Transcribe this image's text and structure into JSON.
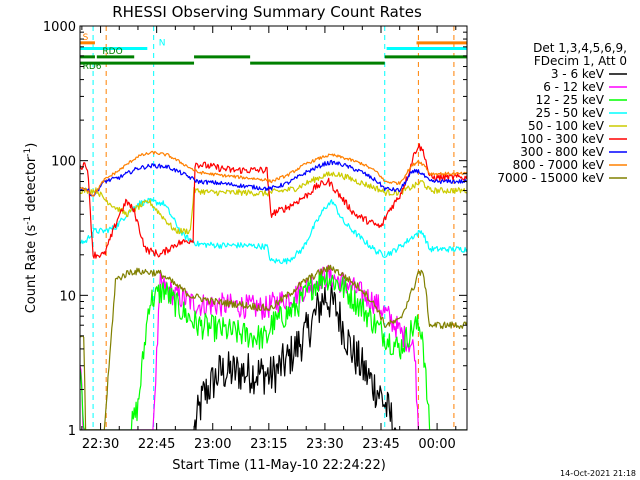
{
  "chart_data": {
    "type": "line",
    "title": "RHESSI Observing Summary Count Rates",
    "xlabel": "Start Time (11-May-10 22:24:22)",
    "ylabel_main": "Count Rate (s",
    "ylabel_sup1": "-1",
    "ylabel_mid": " detector",
    "ylabel_sup2": "-1",
    "ylabel_end": ")",
    "footer": "14-Oct-2021 21:18",
    "y_scale": "log",
    "ylim": [
      1,
      1000
    ],
    "xlim_minutes": [
      -5.5,
      98
    ],
    "x_ticks": [
      {
        "m": 0,
        "label": "22:30"
      },
      {
        "m": 15,
        "label": "22:45"
      },
      {
        "m": 30,
        "label": "23:00"
      },
      {
        "m": 45,
        "label": "23:15"
      },
      {
        "m": 60,
        "label": "23:30"
      },
      {
        "m": 75,
        "label": "23:45"
      },
      {
        "m": 90,
        "label": "00:00"
      }
    ],
    "y_ticks": [
      {
        "v": 1,
        "label": "1"
      },
      {
        "v": 10,
        "label": "10"
      },
      {
        "v": 100,
        "label": "100"
      },
      {
        "v": 1000,
        "label": "1000"
      }
    ],
    "legend": {
      "header1": "Det 1,3,4,5,6,9,",
      "header2": "FDecim 1, Att 0",
      "placement": "right",
      "entries": [
        {
          "label": "3 - 6 keV",
          "color": "#000000"
        },
        {
          "label": "6 - 12 keV",
          "color": "#ff00ff"
        },
        {
          "label": "12 - 25 keV",
          "color": "#00ff00"
        },
        {
          "label": "25 - 50 keV",
          "color": "#00ffff"
        },
        {
          "label": "50 - 100 keV",
          "color": "#cccc00"
        },
        {
          "label": "100 - 300 keV",
          "color": "#ff0000"
        },
        {
          "label": "300 - 800 keV",
          "color": "#0000ff"
        },
        {
          "label": "800 - 7000 keV",
          "color": "#ff8000"
        },
        {
          "label": "7000 - 15000 keV",
          "color": "#808000"
        }
      ]
    },
    "flag_bars": [
      {
        "label": "S",
        "color": "#ff8000",
        "y_value": 750,
        "segments": [
          [
            -5.5,
            -1.5
          ],
          [
            84.5,
            98
          ]
        ]
      },
      {
        "label": "N",
        "color": "#00ffff",
        "y_value": 680,
        "segments": [
          [
            -5.5,
            12.5
          ],
          [
            76.5,
            98
          ]
        ]
      },
      {
        "label": "RDO",
        "color": "#008000",
        "y_value": 590,
        "segments": [
          [
            -5.5,
            -1.5
          ],
          [
            -1,
            9
          ],
          [
            25,
            40
          ],
          [
            76,
            98
          ]
        ]
      },
      {
        "label": "RD6",
        "color": "#008000",
        "y_value": 530,
        "segments": [
          [
            -5.5,
            25
          ],
          [
            40,
            76
          ]
        ]
      }
    ],
    "vlines": [
      {
        "m": -2,
        "color": "#00ffff"
      },
      {
        "m": 1.5,
        "color": "#ff8000"
      },
      {
        "m": 14.2,
        "color": "#00ffff"
      },
      {
        "m": 76,
        "color": "#00ffff"
      },
      {
        "m": 85,
        "color": "#ff8000"
      },
      {
        "m": 94.5,
        "color": "#ff8000"
      }
    ],
    "series": [
      {
        "name": "3 - 6 keV",
        "color": "#000000",
        "noise": 0.35,
        "floor": 1,
        "points": [
          [
            -6,
            1
          ],
          [
            25,
            1
          ],
          [
            27.5,
            1.8
          ],
          [
            32,
            2.7
          ],
          [
            38,
            2.7
          ],
          [
            44.5,
            2.6
          ],
          [
            45.5,
            2.5
          ],
          [
            50,
            3.3
          ],
          [
            55,
            5.2
          ],
          [
            60,
            10
          ],
          [
            63,
            8
          ],
          [
            67,
            4
          ],
          [
            71,
            2.6
          ],
          [
            75,
            1.8
          ],
          [
            79,
            1
          ],
          [
            98,
            1
          ]
        ]
      },
      {
        "name": "6 - 12 keV",
        "color": "#ff00ff",
        "noise": 0.2,
        "floor": 1,
        "points": [
          [
            -6,
            5.5
          ],
          [
            -4.5,
            1
          ],
          [
            14,
            1
          ],
          [
            16,
            12
          ],
          [
            20,
            10
          ],
          [
            26,
            8.5
          ],
          [
            32,
            8.5
          ],
          [
            38,
            8.3
          ],
          [
            44.5,
            8
          ],
          [
            45.5,
            8.5
          ],
          [
            52,
            10
          ],
          [
            58,
            13
          ],
          [
            61,
            14
          ],
          [
            66,
            12
          ],
          [
            73,
            9
          ],
          [
            76,
            7.5
          ],
          [
            81,
            5
          ],
          [
            84,
            4
          ],
          [
            85,
            1
          ],
          [
            86.5,
            1
          ],
          [
            88,
            1
          ],
          [
            98,
            1
          ]
        ]
      },
      {
        "name": "12 - 25 keV",
        "color": "#00ff00",
        "noise": 0.22,
        "floor": 1,
        "points": [
          [
            -6,
            6
          ],
          [
            -4.3,
            1
          ],
          [
            8,
            1
          ],
          [
            10,
            1.5
          ],
          [
            13,
            9
          ],
          [
            17,
            11
          ],
          [
            21,
            8
          ],
          [
            26,
            6
          ],
          [
            33,
            5.5
          ],
          [
            40,
            5
          ],
          [
            44.5,
            4.8
          ],
          [
            45.5,
            6
          ],
          [
            52,
            8
          ],
          [
            57,
            12
          ],
          [
            60,
            14
          ],
          [
            64,
            12
          ],
          [
            70,
            8
          ],
          [
            76,
            5
          ],
          [
            80,
            4
          ],
          [
            84,
            6
          ],
          [
            86,
            5.5
          ],
          [
            88,
            1
          ],
          [
            98,
            1
          ]
        ]
      },
      {
        "name": "25 - 50 keV",
        "color": "#00ffff",
        "noise": 0.05,
        "floor": 1,
        "points": [
          [
            -6,
            25
          ],
          [
            -4,
            25
          ],
          [
            -2,
            30
          ],
          [
            1,
            30
          ],
          [
            4,
            32
          ],
          [
            7,
            40
          ],
          [
            10,
            48
          ],
          [
            13,
            50
          ],
          [
            17,
            48
          ],
          [
            22,
            28
          ],
          [
            26,
            24
          ],
          [
            32,
            23.5
          ],
          [
            38,
            23.5
          ],
          [
            44.5,
            23
          ],
          [
            45.5,
            18
          ],
          [
            50,
            18
          ],
          [
            54,
            22
          ],
          [
            57,
            32
          ],
          [
            60,
            45
          ],
          [
            62,
            50
          ],
          [
            65,
            35
          ],
          [
            70,
            26
          ],
          [
            74,
            21
          ],
          [
            76,
            20
          ],
          [
            78,
            21
          ],
          [
            81,
            24
          ],
          [
            84,
            28
          ],
          [
            86,
            30
          ],
          [
            88,
            22
          ],
          [
            98,
            22
          ]
        ]
      },
      {
        "name": "50 - 100 keV",
        "color": "#cccc00",
        "noise": 0.05,
        "floor": 1,
        "points": [
          [
            -6,
            60
          ],
          [
            -1,
            60
          ],
          [
            1,
            52
          ],
          [
            4,
            45
          ],
          [
            7,
            40
          ],
          [
            10,
            45
          ],
          [
            13,
            50
          ],
          [
            16,
            40
          ],
          [
            20,
            30
          ],
          [
            24,
            30
          ],
          [
            25,
            60
          ],
          [
            30,
            58
          ],
          [
            38,
            58
          ],
          [
            44.5,
            57
          ],
          [
            45.5,
            58
          ],
          [
            52,
            62
          ],
          [
            57,
            72
          ],
          [
            60,
            78
          ],
          [
            63,
            80
          ],
          [
            66,
            75
          ],
          [
            70,
            68
          ],
          [
            74,
            62
          ],
          [
            76,
            58
          ],
          [
            80,
            58
          ],
          [
            84,
            65
          ],
          [
            86,
            70
          ],
          [
            88,
            60
          ],
          [
            98,
            60
          ]
        ]
      },
      {
        "name": "100 - 300 keV",
        "color": "#ff0000",
        "noise": 0.06,
        "floor": 1,
        "points": [
          [
            -6,
            85
          ],
          [
            -4.5,
            95
          ],
          [
            -3.5,
            90
          ],
          [
            -2,
            20
          ],
          [
            1,
            20
          ],
          [
            3,
            28
          ],
          [
            5,
            40
          ],
          [
            7,
            50
          ],
          [
            9,
            42
          ],
          [
            12,
            22
          ],
          [
            16,
            20
          ],
          [
            20,
            24
          ],
          [
            24.8,
            26
          ],
          [
            25.2,
            95
          ],
          [
            30,
            90
          ],
          [
            35,
            85
          ],
          [
            38,
            85
          ],
          [
            44.5,
            85
          ],
          [
            45.5,
            40
          ],
          [
            50,
            45
          ],
          [
            55,
            55
          ],
          [
            58,
            65
          ],
          [
            61,
            70
          ],
          [
            64,
            55
          ],
          [
            68,
            40
          ],
          [
            72,
            35
          ],
          [
            75,
            32
          ],
          [
            77,
            42
          ],
          [
            80,
            55
          ],
          [
            82,
            75
          ],
          [
            84,
            115
          ],
          [
            85,
            130
          ],
          [
            86.5,
            115
          ],
          [
            88,
            75
          ],
          [
            98,
            75
          ]
        ]
      },
      {
        "name": "300 - 800 keV",
        "color": "#0000ff",
        "noise": 0.035,
        "floor": 1,
        "points": [
          [
            -6,
            62
          ],
          [
            -4,
            62
          ],
          [
            -2,
            55
          ],
          [
            1,
            70
          ],
          [
            5,
            75
          ],
          [
            10,
            88
          ],
          [
            14,
            92
          ],
          [
            18,
            90
          ],
          [
            22,
            80
          ],
          [
            26,
            70
          ],
          [
            32,
            68
          ],
          [
            38,
            65
          ],
          [
            44.5,
            62
          ],
          [
            45.5,
            62
          ],
          [
            50,
            68
          ],
          [
            55,
            82
          ],
          [
            60,
            95
          ],
          [
            62,
            97
          ],
          [
            65,
            93
          ],
          [
            70,
            82
          ],
          [
            74,
            70
          ],
          [
            76,
            62
          ],
          [
            80,
            60
          ],
          [
            83,
            80
          ],
          [
            84.5,
            85
          ],
          [
            86,
            80
          ],
          [
            88,
            70
          ],
          [
            98,
            70
          ]
        ]
      },
      {
        "name": "800 - 7000 keV",
        "color": "#ff8000",
        "noise": 0.025,
        "floor": 1,
        "points": [
          [
            -6,
            62
          ],
          [
            -4,
            62
          ],
          [
            -2,
            55
          ],
          [
            1,
            72
          ],
          [
            5,
            85
          ],
          [
            10,
            108
          ],
          [
            14,
            115
          ],
          [
            18,
            110
          ],
          [
            22,
            95
          ],
          [
            26,
            82
          ],
          [
            32,
            78
          ],
          [
            38,
            75
          ],
          [
            44.5,
            72
          ],
          [
            45.5,
            70
          ],
          [
            50,
            78
          ],
          [
            55,
            95
          ],
          [
            60,
            108
          ],
          [
            62,
            110
          ],
          [
            65,
            105
          ],
          [
            70,
            95
          ],
          [
            74,
            82
          ],
          [
            76,
            70
          ],
          [
            80,
            68
          ],
          [
            83,
            90
          ],
          [
            85,
            100
          ],
          [
            87,
            90
          ],
          [
            88,
            80
          ],
          [
            98,
            80
          ]
        ]
      },
      {
        "name": "7000 - 15000 keV",
        "color": "#808000",
        "noise": 0.06,
        "floor": 1,
        "points": [
          [
            -6,
            5
          ],
          [
            -4.5,
            5
          ],
          [
            -4,
            1
          ],
          [
            1,
            1
          ],
          [
            4,
            13
          ],
          [
            8,
            15
          ],
          [
            12,
            15
          ],
          [
            16,
            14.5
          ],
          [
            20,
            12
          ],
          [
            24,
            10
          ],
          [
            30,
            9
          ],
          [
            38,
            8.5
          ],
          [
            44.5,
            8
          ],
          [
            45.5,
            8
          ],
          [
            50,
            10
          ],
          [
            55,
            13
          ],
          [
            60,
            15.5
          ],
          [
            62,
            16
          ],
          [
            65,
            14
          ],
          [
            70,
            11
          ],
          [
            74,
            8
          ],
          [
            76,
            6
          ],
          [
            80,
            6.5
          ],
          [
            84,
            12
          ],
          [
            85,
            15
          ],
          [
            86.5,
            14
          ],
          [
            88,
            6
          ],
          [
            98,
            6
          ]
        ]
      }
    ]
  }
}
